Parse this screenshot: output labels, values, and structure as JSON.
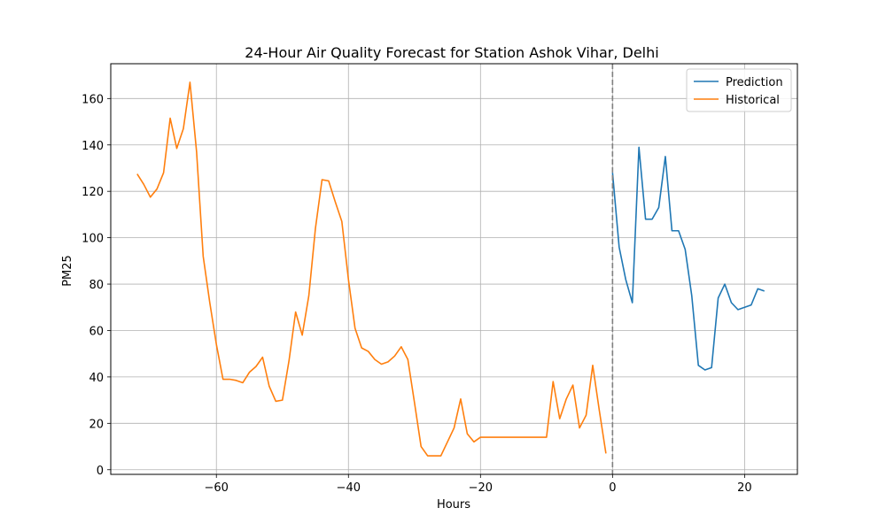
{
  "chart_data": {
    "type": "line",
    "title": "24-Hour Air Quality Forecast for Station Ashok Vihar, Delhi",
    "xlabel": "Hours",
    "ylabel": "PM25",
    "xlim": [
      -76,
      28
    ],
    "ylim": [
      -2,
      175
    ],
    "xticks": [
      -60,
      -40,
      -20,
      0,
      20
    ],
    "xtick_labels": [
      "−60",
      "−40",
      "−20",
      "0",
      "20"
    ],
    "yticks": [
      0,
      20,
      40,
      60,
      80,
      100,
      120,
      140,
      160
    ],
    "ytick_labels": [
      "0",
      "20",
      "40",
      "60",
      "80",
      "100",
      "120",
      "140",
      "160"
    ],
    "grid": true,
    "legend_position": "upper-right",
    "vline": {
      "x": 0,
      "color": "#808080",
      "style": "dashed"
    },
    "series": [
      {
        "name": "Prediction",
        "color": "#1f77b4",
        "x": [
          0,
          1,
          2,
          3,
          4,
          5,
          6,
          7,
          8,
          9,
          10,
          11,
          12,
          13,
          14,
          15,
          16,
          17,
          18,
          19,
          20,
          21,
          22,
          23
        ],
        "y": [
          128,
          96,
          82,
          72,
          139,
          108,
          108,
          113,
          135,
          103,
          103,
          95,
          75,
          45,
          43,
          44,
          74,
          80,
          72,
          69,
          70,
          71,
          78,
          77
        ]
      },
      {
        "name": "Historical",
        "color": "#ff7f0e",
        "x": [
          -72,
          -71,
          -70,
          -69,
          -68,
          -67,
          -66,
          -65,
          -64,
          -63,
          -62,
          -61,
          -60,
          -59,
          -58,
          -57,
          -56,
          -55,
          -54,
          -53,
          -52,
          -51,
          -50,
          -49,
          -48,
          -47,
          -46,
          -45,
          -44,
          -43,
          -42,
          -41,
          -40,
          -39,
          -38,
          -37,
          -36,
          -35,
          -34,
          -33,
          -32,
          -31,
          -30,
          -29,
          -28,
          -27,
          -26,
          -25,
          -24,
          -23,
          -22,
          -21,
          -20,
          -19,
          -18,
          -17,
          -16,
          -15,
          -14,
          -13,
          -12,
          -11,
          -10,
          -9,
          -8,
          -7,
          -6,
          -5,
          -4,
          -3,
          -2,
          -1
        ],
        "y": [
          127.5,
          123,
          117.5,
          121,
          128,
          151.5,
          138.5,
          147,
          167,
          137,
          92,
          72,
          54,
          39,
          39,
          38.5,
          37.5,
          42,
          44.5,
          48.5,
          36,
          29.5,
          30,
          47,
          68,
          58,
          75,
          104,
          125,
          124.5,
          115.5,
          107,
          82,
          61,
          52.5,
          51,
          47.5,
          45.5,
          46.5,
          49,
          53,
          47.5,
          29,
          10,
          6,
          6,
          6,
          12,
          18,
          30.5,
          15.5,
          12,
          14,
          14,
          14,
          14,
          14,
          14,
          14,
          14,
          14,
          14,
          14,
          38,
          22,
          30.5,
          36.5,
          18,
          23.5,
          45,
          25.5,
          7
        ]
      }
    ]
  }
}
